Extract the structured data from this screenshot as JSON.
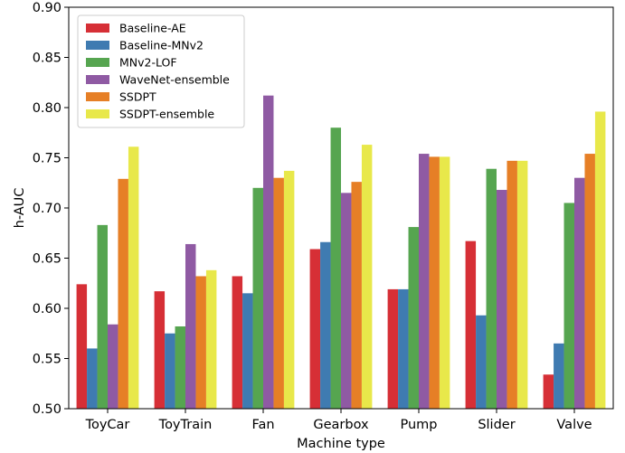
{
  "chart_data": {
    "type": "bar",
    "xlabel": "Machine type",
    "ylabel": "h-AUC",
    "ylim": [
      0.5,
      0.9
    ],
    "yticks": [
      "0.50",
      "0.55",
      "0.60",
      "0.65",
      "0.70",
      "0.75",
      "0.80",
      "0.85",
      "0.90"
    ],
    "legend_position": "top-left",
    "grid": false,
    "categories": [
      "ToyCar",
      "ToyTrain",
      "Fan",
      "Gearbox",
      "Pump",
      "Slider",
      "Valve"
    ],
    "series": [
      {
        "name": "Baseline-AE",
        "color": "#d62f36",
        "values": [
          0.624,
          0.617,
          0.632,
          0.659,
          0.619,
          0.667,
          0.534
        ]
      },
      {
        "name": "Baseline-MNv2",
        "color": "#3f7bb1",
        "values": [
          0.56,
          0.575,
          0.615,
          0.666,
          0.619,
          0.593,
          0.565
        ]
      },
      {
        "name": "MNv2-LOF",
        "color": "#56a550",
        "values": [
          0.683,
          0.582,
          0.72,
          0.78,
          0.681,
          0.739,
          0.705
        ]
      },
      {
        "name": "WaveNet-ensemble",
        "color": "#8f5aa3",
        "values": [
          0.584,
          0.664,
          0.812,
          0.715,
          0.754,
          0.718,
          0.73
        ]
      },
      {
        "name": "SSDPT",
        "color": "#e67f26",
        "values": [
          0.729,
          0.632,
          0.73,
          0.726,
          0.751,
          0.747,
          0.754
        ]
      },
      {
        "name": "SSDPT-ensemble",
        "color": "#e8e84a",
        "values": [
          0.761,
          0.638,
          0.737,
          0.763,
          0.751,
          0.747,
          0.796
        ]
      }
    ]
  }
}
